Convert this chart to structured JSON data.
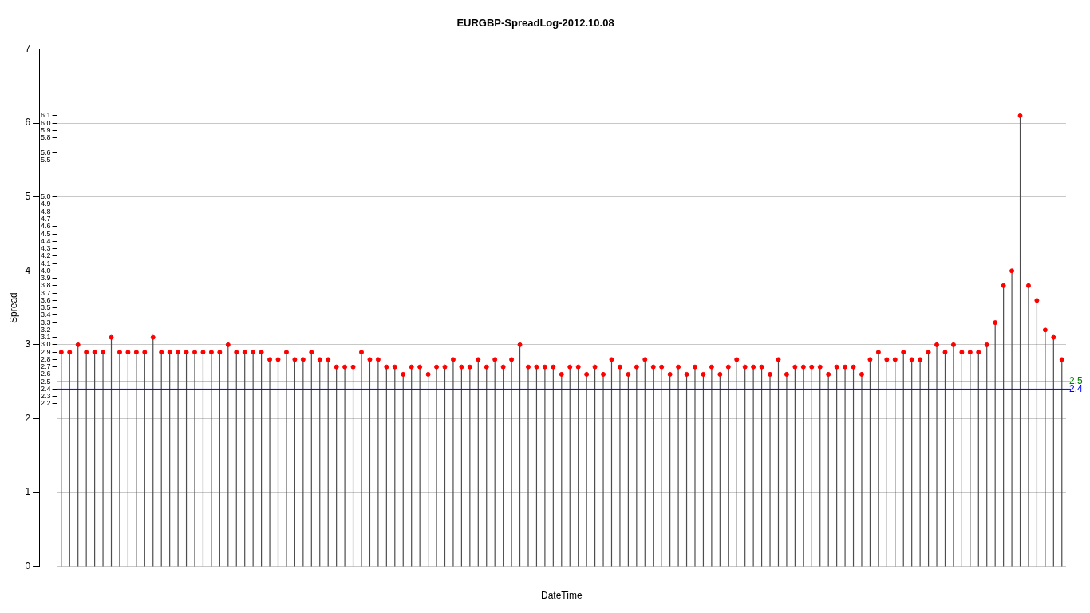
{
  "chart_data": {
    "type": "lollipop",
    "title": "EURGBP-SpreadLog-2012.10.08",
    "xlabel": "DateTime",
    "ylabel": "Spread",
    "categories": [
      null,
      null,
      null,
      null,
      null,
      null,
      null,
      null,
      null,
      null,
      null,
      null,
      null,
      null,
      null,
      null,
      null,
      null,
      null,
      null,
      null,
      null,
      null,
      null,
      null,
      null,
      null,
      null,
      null,
      null,
      null,
      null,
      null,
      null,
      null,
      null,
      null,
      null,
      null,
      null,
      null,
      null,
      null,
      null,
      null,
      null,
      null,
      null,
      null,
      null,
      null,
      null,
      null,
      null,
      null,
      null,
      null,
      null,
      null,
      null,
      null,
      null,
      null,
      null,
      null,
      null,
      null,
      null,
      null,
      null,
      null,
      null,
      null,
      null,
      null,
      null,
      null,
      null,
      null,
      null,
      null,
      null,
      null,
      null,
      null,
      null,
      null,
      null,
      null,
      null,
      null,
      null,
      null,
      null,
      null,
      null,
      null,
      null,
      null,
      null,
      null,
      null,
      null,
      null,
      null,
      null,
      null,
      null,
      null,
      null,
      null,
      null,
      null,
      null,
      null,
      null,
      null,
      null,
      null,
      null,
      null
    ],
    "series": [
      {
        "color": "#ff0000",
        "values": [
          2.9,
          2.9,
          3.0,
          2.9,
          2.9,
          2.9,
          3.1,
          2.9,
          2.9,
          2.9,
          2.9,
          3.1,
          2.9,
          2.9,
          2.9,
          2.9,
          2.9,
          2.9,
          2.9,
          2.9,
          3.0,
          2.9,
          2.9,
          2.9,
          2.9,
          2.8,
          2.8,
          2.9,
          2.8,
          2.8,
          2.9,
          2.8,
          2.8,
          2.7,
          2.7,
          2.7,
          2.9,
          2.8,
          2.8,
          2.7,
          2.7,
          2.6,
          2.7,
          2.7,
          2.6,
          2.7,
          2.7,
          2.8,
          2.7,
          2.7,
          2.8,
          2.7,
          2.8,
          2.7,
          2.8,
          3.0,
          2.7,
          2.7,
          2.7,
          2.7,
          2.6,
          2.7,
          2.7,
          2.6,
          2.7,
          2.6,
          2.8,
          2.7,
          2.6,
          2.7,
          2.8,
          2.7,
          2.7,
          2.6,
          2.7,
          2.6,
          2.7,
          2.6,
          2.7,
          2.6,
          2.7,
          2.8,
          2.7,
          2.7,
          2.7,
          2.6,
          2.8,
          2.6,
          2.7,
          2.7,
          2.7,
          2.7,
          2.6,
          2.7,
          2.7,
          2.7,
          2.6,
          2.8,
          2.9,
          2.8,
          2.8,
          2.9,
          2.8,
          2.8,
          2.9,
          3.0,
          2.9,
          3.0,
          2.9,
          2.9,
          2.9,
          3.0,
          3.3,
          3.8,
          4.0,
          6.1,
          3.8,
          3.6,
          3.2,
          3.1,
          2.8
        ]
      }
    ],
    "ylim": [
      0,
      7
    ],
    "yticks": [
      0,
      1,
      2,
      3,
      4,
      5,
      6,
      7
    ],
    "y2lim": [
      0,
      7
    ],
    "y2ticks": [
      2.2,
      2.3,
      2.4,
      2.5,
      2.6,
      2.7,
      2.8,
      2.9,
      {
        "value": 3,
        "label": "3.0"
      },
      3.1,
      3.2,
      3.3,
      3.4,
      3.5,
      3.6,
      3.7,
      3.8,
      3.9,
      {
        "value": 4,
        "label": "4.0"
      },
      4.1,
      4.2,
      4.3,
      4.4,
      4.5,
      4.6,
      4.7,
      4.8,
      4.9,
      {
        "value": 5,
        "label": "5.0"
      },
      5.5,
      5.6,
      5.8,
      5.9,
      {
        "value": 6,
        "label": "6.0"
      },
      6.1
    ],
    "ref_lines": [
      {
        "axis": "y",
        "value": 2.5,
        "label": "2.5",
        "color": "#008000"
      },
      {
        "axis": "y",
        "value": 2.4,
        "label": "2.4",
        "color": "#0000ff"
      }
    ],
    "grid": "y",
    "marker": "circle"
  }
}
